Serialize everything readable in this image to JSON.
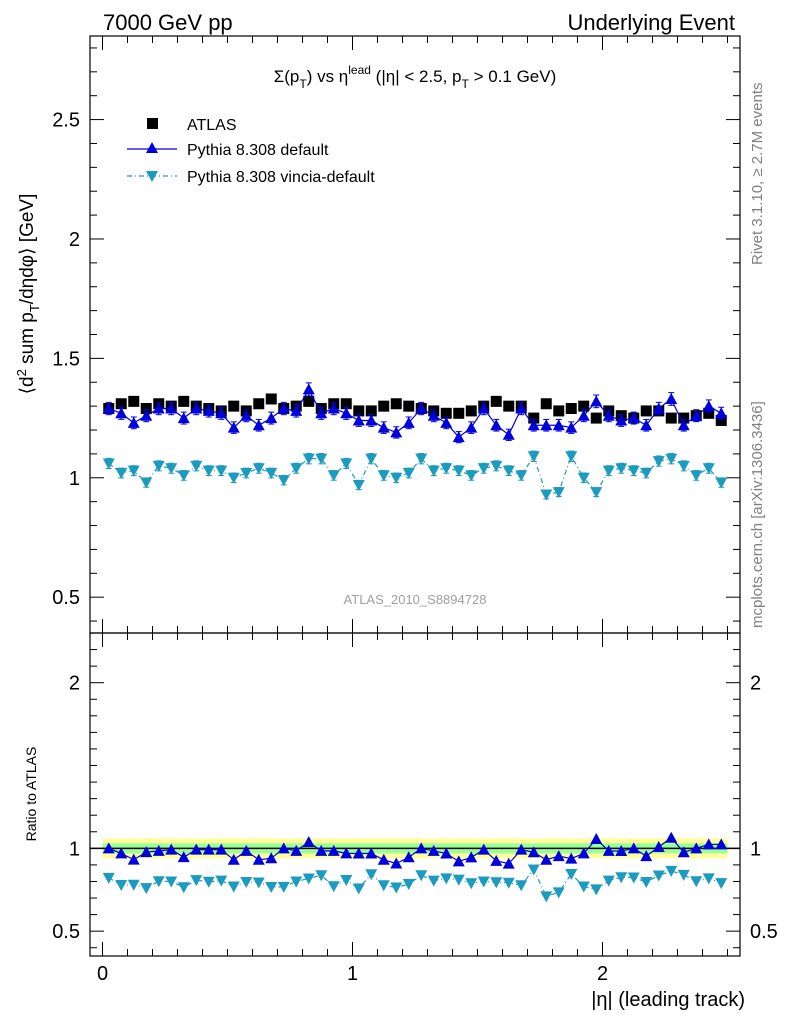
{
  "header": {
    "left": "7000 GeV pp",
    "right": "Underlying Event"
  },
  "plot_title": {
    "main": "Σ(p",
    "sub_t": "T",
    "mid": ") vs η",
    "sup": "lead",
    "rest": " (|η| < 2.5, p",
    "sub_t2": "T",
    "end": " > 0.1 GeV)"
  },
  "legend": [
    {
      "label": "ATLAS",
      "color": "#000000",
      "marker": "square"
    },
    {
      "label": "Pythia 8.308 default",
      "color": "#0000dd",
      "marker": "triangle-up"
    },
    {
      "label": "Pythia 8.308 vincia-default",
      "color": "#1a9bbf",
      "marker": "triangle-down"
    }
  ],
  "side_labels": {
    "rivet": "Rivet 3.1.10, ≥ 2.7M events",
    "mcplots": "mcplots.cern.ch [arXiv:1306.3436]"
  },
  "watermark": "ATLAS_2010_S8894728",
  "axes": {
    "ylabel_main": "⟨d² sum p_T/dηdφ⟩ [GeV]",
    "ylabel_ratio": "Ratio to ATLAS",
    "xlabel": "|η| (leading track)",
    "main_yticks": [
      "0.5",
      "1",
      "1.5",
      "2",
      "2.5"
    ],
    "ratio_yticks": [
      "0.5",
      "1",
      "2"
    ],
    "xticks": [
      "0",
      "1",
      "2"
    ]
  },
  "chart_data": {
    "type": "line",
    "xlabel": "|η| (leading track)",
    "ylabel": "⟨d² sum p_T/dηdφ⟩ [GeV]",
    "xlim": [
      -0.05,
      2.55
    ],
    "ylim": [
      0.35,
      2.85
    ],
    "ratio_ylim": [
      0.35,
      2.3
    ],
    "x": [
      0.025,
      0.075,
      0.125,
      0.175,
      0.225,
      0.275,
      0.325,
      0.375,
      0.425,
      0.475,
      0.525,
      0.575,
      0.625,
      0.675,
      0.725,
      0.775,
      0.825,
      0.875,
      0.925,
      0.975,
      1.025,
      1.075,
      1.125,
      1.175,
      1.225,
      1.275,
      1.325,
      1.375,
      1.425,
      1.475,
      1.525,
      1.575,
      1.625,
      1.675,
      1.725,
      1.775,
      1.825,
      1.875,
      1.925,
      1.975,
      2.025,
      2.075,
      2.125,
      2.175,
      2.225,
      2.275,
      2.325,
      2.375,
      2.425,
      2.475
    ],
    "series": [
      {
        "name": "ATLAS",
        "values": [
          1.29,
          1.31,
          1.32,
          1.29,
          1.31,
          1.3,
          1.32,
          1.3,
          1.29,
          1.28,
          1.3,
          1.28,
          1.31,
          1.33,
          1.29,
          1.3,
          1.32,
          1.29,
          1.31,
          1.31,
          1.28,
          1.28,
          1.3,
          1.31,
          1.3,
          1.29,
          1.28,
          1.27,
          1.27,
          1.28,
          1.3,
          1.32,
          1.3,
          1.3,
          1.25,
          1.31,
          1.28,
          1.29,
          1.3,
          1.25,
          1.28,
          1.26,
          1.25,
          1.28,
          1.28,
          1.25,
          1.25,
          1.26,
          1.27,
          1.24
        ]
      },
      {
        "name": "Pythia 8.308 default",
        "values": [
          1.29,
          1.27,
          1.23,
          1.26,
          1.29,
          1.29,
          1.25,
          1.29,
          1.28,
          1.27,
          1.21,
          1.26,
          1.22,
          1.25,
          1.29,
          1.28,
          1.37,
          1.27,
          1.29,
          1.27,
          1.24,
          1.24,
          1.21,
          1.19,
          1.23,
          1.29,
          1.26,
          1.23,
          1.17,
          1.21,
          1.29,
          1.22,
          1.18,
          1.29,
          1.22,
          1.22,
          1.22,
          1.21,
          1.26,
          1.32,
          1.26,
          1.24,
          1.25,
          1.22,
          1.29,
          1.33,
          1.22,
          1.26,
          1.3,
          1.27
        ]
      },
      {
        "name": "Pythia 8.308 vincia-default",
        "values": [
          1.06,
          1.02,
          1.03,
          0.98,
          1.05,
          1.04,
          1.01,
          1.05,
          1.03,
          1.03,
          1.0,
          1.02,
          1.04,
          1.02,
          0.99,
          1.04,
          1.08,
          1.08,
          1.01,
          1.06,
          0.97,
          1.08,
          1.01,
          1.0,
          1.02,
          1.08,
          1.03,
          1.04,
          1.03,
          1.01,
          1.04,
          1.05,
          1.03,
          1.01,
          1.09,
          0.93,
          0.94,
          1.09,
          1.0,
          0.94,
          1.03,
          1.04,
          1.03,
          1.02,
          1.07,
          1.08,
          1.05,
          1.01,
          1.04,
          0.98
        ]
      }
    ],
    "ratio": {
      "ylabel": "Ratio to ATLAS",
      "band_inner": 0.03,
      "band_outer": 0.06
    }
  }
}
